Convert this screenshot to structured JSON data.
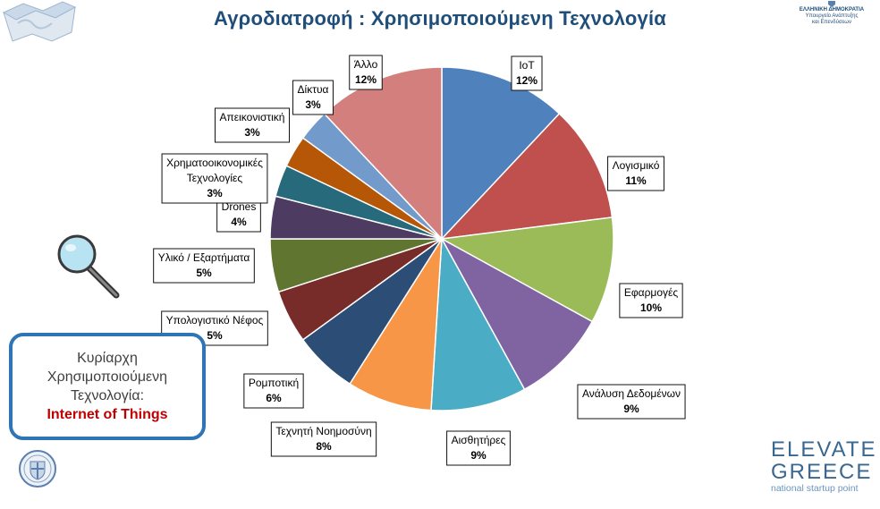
{
  "header": {
    "title": "Αγροδιατροφή : Χρησιμοποιούμενη Τεχνολογία"
  },
  "ministry": {
    "line1": "ΕΛΛΗΝΙΚΗ ΔΗΜΟΚΡΑΤΙΑ",
    "line2": "Υπουργείο Ανάπτυξης",
    "line3": "και Επενδύσεων"
  },
  "callout": {
    "line1": "Κυρίαρχη",
    "line2": "Χρησιμοποιούμενη",
    "line3": "Τεχνολογία:",
    "highlight": "Internet of Things"
  },
  "brand": {
    "line1": "ELEVATE",
    "line2": "GREECE",
    "tagline": "national startup point"
  },
  "chart_data": {
    "type": "pie",
    "title": "Αγροδιατροφή : Χρησιμοποιούμενη Τεχνολογία",
    "unit": "%",
    "slices": [
      {
        "label": [
          "IoT"
        ],
        "value": 12,
        "color": "#4f81bd"
      },
      {
        "label": [
          "Λογισμικό"
        ],
        "value": 11,
        "color": "#c0504d"
      },
      {
        "label": [
          "Εφαρμογές"
        ],
        "value": 10,
        "color": "#9bbb59"
      },
      {
        "label": [
          "Ανάλυση Δεδομένων"
        ],
        "value": 9,
        "color": "#8064a2"
      },
      {
        "label": [
          "Αισθητήρες"
        ],
        "value": 9,
        "color": "#4bacc6"
      },
      {
        "label": [
          "Τεχνητή Νοημοσύνη"
        ],
        "value": 8,
        "color": "#f79646"
      },
      {
        "label": [
          "Ρομποτική"
        ],
        "value": 6,
        "color": "#2c4d75"
      },
      {
        "label": [
          "Υπολογιστικό Νέφος"
        ],
        "value": 5,
        "color": "#772c2a"
      },
      {
        "label": [
          "Υλικό / Εξαρτήματα"
        ],
        "value": 5,
        "color": "#5f7530"
      },
      {
        "label": [
          "Drones"
        ],
        "value": 4,
        "color": "#4d3b62"
      },
      {
        "label": [
          "Χρηματοοικονομικές",
          "Τεχνολογίες"
        ],
        "value": 3,
        "color": "#276a7c"
      },
      {
        "label": [
          "Απεικονιστική"
        ],
        "value": 3,
        "color": "#b65708"
      },
      {
        "label": [
          "Δίκτυα"
        ],
        "value": 3,
        "color": "#729aca"
      },
      {
        "label": [
          "Άλλο"
        ],
        "value": 12,
        "color": "#d27f7d"
      }
    ]
  }
}
